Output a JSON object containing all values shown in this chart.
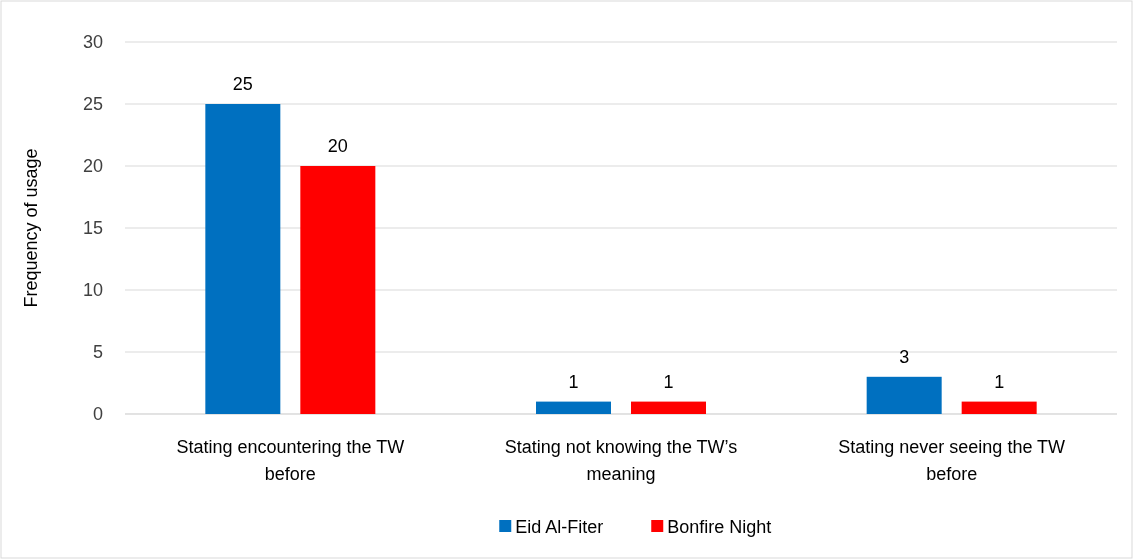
{
  "chart_data": {
    "type": "bar",
    "ylabel": "Frequency of usage",
    "categories": [
      "Stating encountering the TW before",
      "Stating not knowing the TW’s meaning",
      "Stating never seeing the TW before"
    ],
    "series": [
      {
        "name": "Eid Al-Fiter",
        "color": "#0070c0",
        "values": [
          25,
          1,
          3
        ]
      },
      {
        "name": "Bonfire Night",
        "color": "#ff0000",
        "values": [
          20,
          1,
          1
        ]
      }
    ],
    "ylim": [
      0,
      30
    ],
    "yticks": [
      0,
      5,
      10,
      15,
      20,
      25,
      30
    ],
    "grid": "y",
    "legend": "bottom",
    "data_labels": true
  }
}
